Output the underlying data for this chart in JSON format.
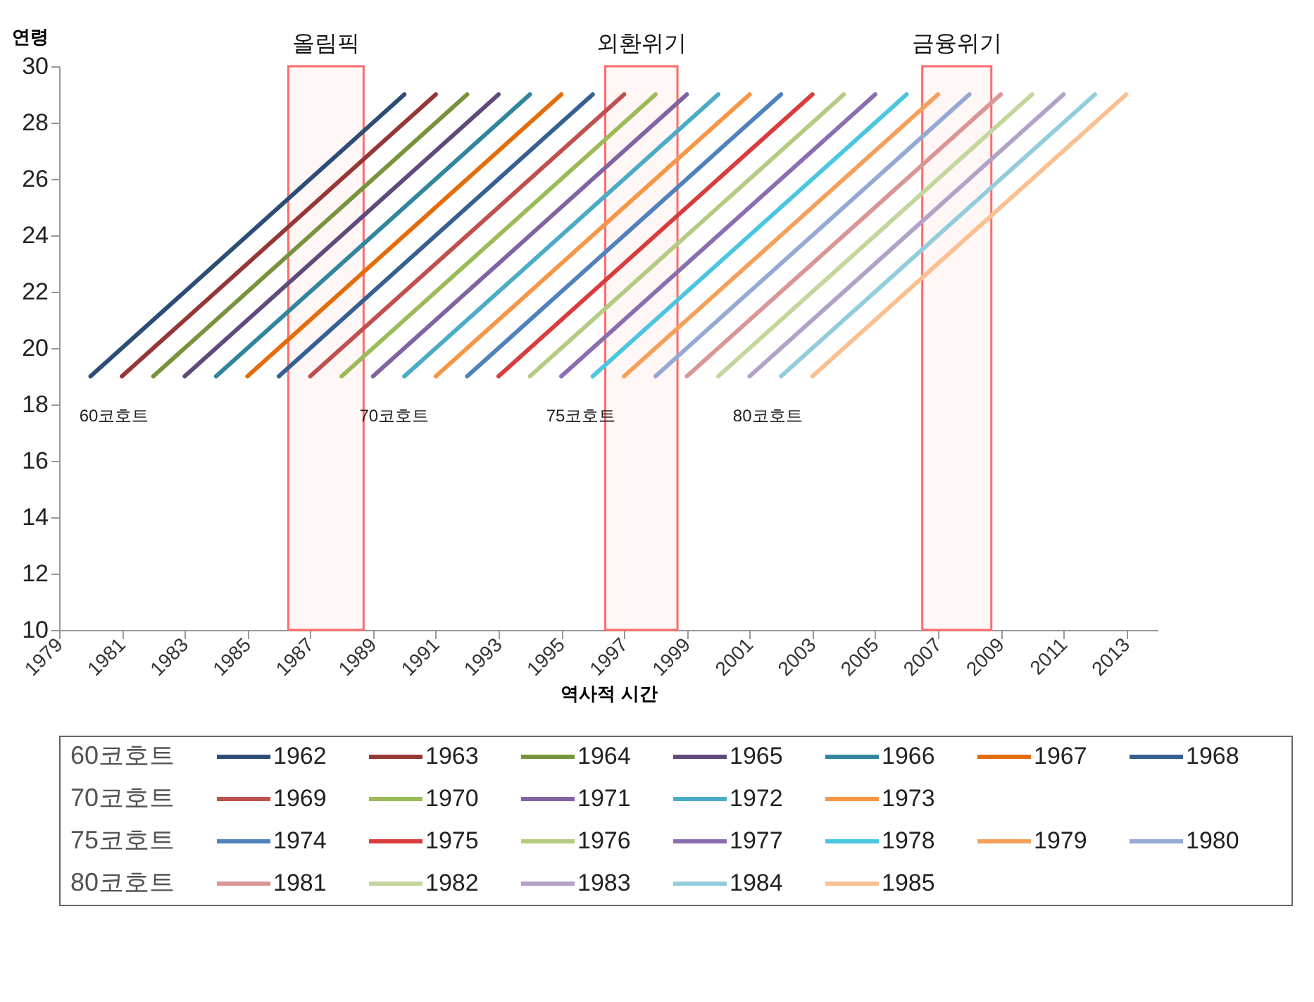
{
  "chart_data": {
    "type": "line",
    "xlabel": "역사적 시간",
    "ylabel": "연령",
    "xlim": [
      1979,
      2014
    ],
    "ylim": [
      10,
      30
    ],
    "xticks": [
      1979,
      1981,
      1983,
      1985,
      1987,
      1989,
      1991,
      1993,
      1995,
      1997,
      1999,
      2001,
      2003,
      2005,
      2007,
      2009,
      2011,
      2013
    ],
    "yticks": [
      10,
      12,
      14,
      16,
      18,
      20,
      22,
      24,
      26,
      28,
      30
    ],
    "grid": false,
    "legend": "bottom",
    "marker": "none",
    "line_style": "solid",
    "series": [
      {
        "name": "1962",
        "color": "#2c4d75",
        "x": [
          1980,
          1990
        ],
        "values": [
          19,
          29
        ]
      },
      {
        "name": "1963",
        "color": "#953735",
        "x": [
          1981,
          1991
        ],
        "values": [
          19,
          29
        ]
      },
      {
        "name": "1964",
        "color": "#77933c",
        "x": [
          1982,
          1992
        ],
        "values": [
          19,
          29
        ]
      },
      {
        "name": "1965",
        "color": "#604a7b",
        "x": [
          1983,
          1993
        ],
        "values": [
          19,
          29
        ]
      },
      {
        "name": "1966",
        "color": "#31859c",
        "x": [
          1984,
          1994
        ],
        "values": [
          19,
          29
        ]
      },
      {
        "name": "1967",
        "color": "#e46c0a",
        "x": [
          1985,
          1995
        ],
        "values": [
          19,
          29
        ]
      },
      {
        "name": "1968",
        "color": "#376092",
        "x": [
          1986,
          1996
        ],
        "values": [
          19,
          29
        ]
      },
      {
        "name": "1969",
        "color": "#c0504d",
        "x": [
          1987,
          1997
        ],
        "values": [
          19,
          29
        ]
      },
      {
        "name": "1970",
        "color": "#9bbb59",
        "x": [
          1988,
          1998
        ],
        "values": [
          19,
          29
        ]
      },
      {
        "name": "1971",
        "color": "#8064a2",
        "x": [
          1989,
          1999
        ],
        "values": [
          19,
          29
        ]
      },
      {
        "name": "1972",
        "color": "#4bacc6",
        "x": [
          1990,
          2000
        ],
        "values": [
          19,
          29
        ]
      },
      {
        "name": "1973",
        "color": "#f79646",
        "x": [
          1991,
          2001
        ],
        "values": [
          19,
          29
        ]
      },
      {
        "name": "1974",
        "color": "#4f81bd",
        "x": [
          1992,
          2002
        ],
        "values": [
          19,
          29
        ]
      },
      {
        "name": "1975",
        "color": "#d83c3c",
        "x": [
          1993,
          2003
        ],
        "values": [
          19,
          29
        ]
      },
      {
        "name": "1976",
        "color": "#b3cc82",
        "x": [
          1994,
          2004
        ],
        "values": [
          19,
          29
        ]
      },
      {
        "name": "1977",
        "color": "#8a6fb0",
        "x": [
          1995,
          2005
        ],
        "values": [
          19,
          29
        ]
      },
      {
        "name": "1978",
        "color": "#4bc6e0",
        "x": [
          1996,
          2006
        ],
        "values": [
          19,
          29
        ]
      },
      {
        "name": "1979",
        "color": "#f5a05a",
        "x": [
          1997,
          2007
        ],
        "values": [
          19,
          29
        ]
      },
      {
        "name": "1980",
        "color": "#95a9d5",
        "x": [
          1998,
          2008
        ],
        "values": [
          19,
          29
        ]
      },
      {
        "name": "1981",
        "color": "#d99694",
        "x": [
          1999,
          2009
        ],
        "values": [
          19,
          29
        ]
      },
      {
        "name": "1982",
        "color": "#c3d69b",
        "x": [
          2000,
          2010
        ],
        "values": [
          19,
          29
        ]
      },
      {
        "name": "1983",
        "color": "#b3a2c7",
        "x": [
          2001,
          2011
        ],
        "values": [
          19,
          29
        ]
      },
      {
        "name": "1984",
        "color": "#93cddd",
        "x": [
          2002,
          2012
        ],
        "values": [
          19,
          29
        ]
      },
      {
        "name": "1985",
        "color": "#fac090",
        "x": [
          2003,
          2013
        ],
        "values": [
          19,
          29
        ]
      }
    ],
    "bands": [
      {
        "axis": "x",
        "from": 1986.3,
        "to": 1988.7,
        "label": "올림픽",
        "color": "#ff6b6b"
      },
      {
        "axis": "x",
        "from": 1996.4,
        "to": 1998.7,
        "label": "외환위기",
        "color": "#ff6b6b"
      },
      {
        "axis": "x",
        "from": 2006.5,
        "to": 2008.7,
        "label": "금융위기",
        "color": "#ff6b6b"
      }
    ],
    "annotations": [
      "60코호트",
      "70코호트",
      "75코호트",
      "80코호트",
      "60코호트",
      "70코호트",
      "75코호트",
      "80코호트"
    ]
  }
}
